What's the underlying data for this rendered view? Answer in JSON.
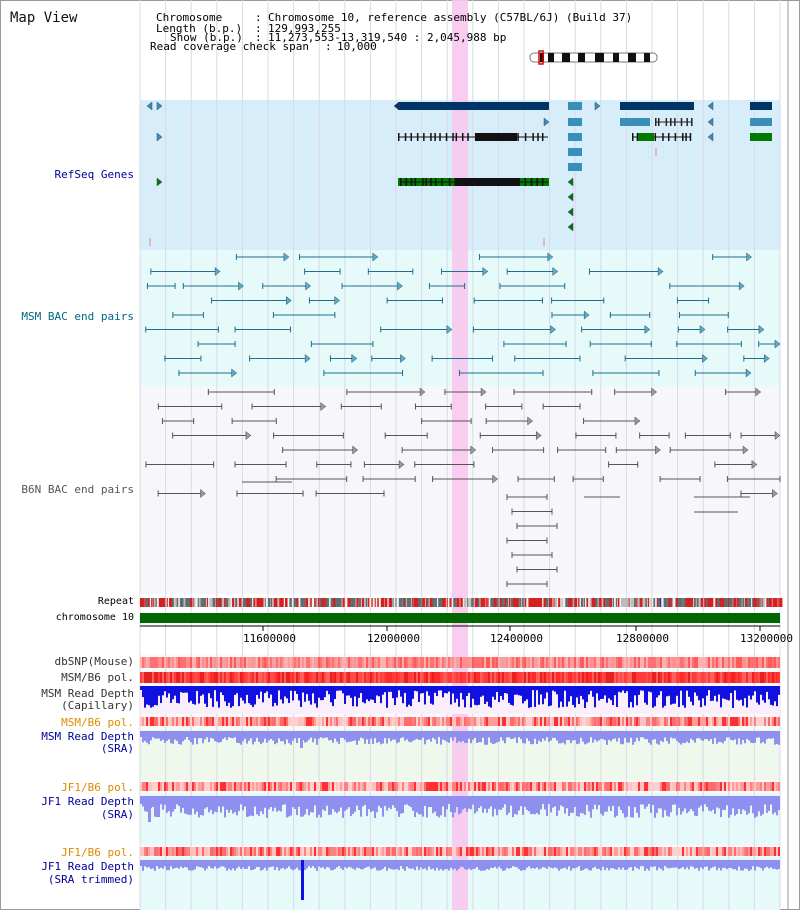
{
  "page": {
    "title": "Map View"
  },
  "info": {
    "chromosome_label": "Chromosome",
    "chromosome_value": "Chromosome 10, reference assembly (C57BL/6J) (Build 37)",
    "length_label": "Length (b.p.)",
    "length_value": "129,993,255",
    "show_label": "Show (b.p.)",
    "show_value": "11,273,553-13,319,540 : 2,045,988 bp",
    "span_label": "Read coverage check span",
    "span_value": "10,000"
  },
  "tracks": {
    "refseq": "RefSeq Genes",
    "msm_bac": "MSM BAC end pairs",
    "b6n_bac": "B6N BAC end pairs",
    "repeat": "Repeat",
    "chromosome": "chromosome 10",
    "dbsnp": "dbSNP(Mouse)",
    "msm_b6_pol_1": "MSM/B6 pol.",
    "msm_read_depth_cap_1": "MSM Read Depth",
    "msm_read_depth_cap_2": "(Capillary)",
    "msm_b6_pol_2": "MSM/B6 pol.",
    "msm_read_depth_sra_1": "MSM Read Depth",
    "msm_read_depth_sra_2": "(SRA)",
    "jf1_b6_pol_1": "JF1/B6 pol.",
    "jf1_read_depth_1": "JF1 Read Depth",
    "jf1_read_depth_2": "(SRA)",
    "jf1_b6_pol_2": "JF1/B6 pol.",
    "jf1_read_depth_trim_1": "JF1 Read Depth",
    "jf1_read_depth_trim_2": "(SRA trimmed)"
  },
  "axis": {
    "ticks": [
      "11600000",
      "12000000",
      "12400000",
      "12800000",
      "13200000"
    ]
  },
  "colors": {
    "refseq_bg": "#d7eefa",
    "msm_bg": "#e6fafa",
    "b6n_bg": "#f7f7fb",
    "gene_dark": "#003366",
    "gene_mid": "#3a8fb8",
    "gene_green": "#007a00",
    "highlight": "#f7c8ee",
    "chromosome": "#006600",
    "depth_blue": "#1010e0",
    "depth_light": "#8f8ff0",
    "pol_red": "#ff3333",
    "pol_orange_label": "#e08a00",
    "sra_label": "#000099"
  }
}
